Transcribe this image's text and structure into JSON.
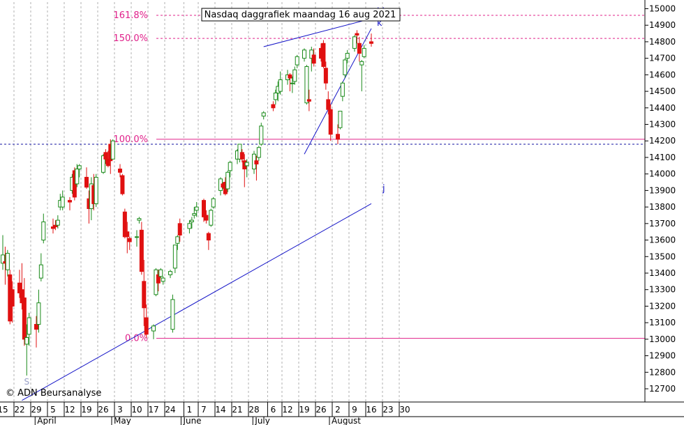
{
  "title": "Nasdaq daggrafiek maandag 16 aug 2021",
  "copyright": "© ADN Beursanalyse",
  "colors": {
    "up": "#1a8a1a",
    "down": "#e01010",
    "fib": "#e0208a",
    "trend": "#1515c8",
    "grid": "#b0b0b0"
  },
  "chart_data": {
    "type": "candlestick",
    "title": "Nasdaq daggrafiek maandag 16 aug 2021",
    "y_axis": {
      "position": "right",
      "ylim": [
        12620,
        15040
      ],
      "ticks": [
        12700,
        12800,
        12900,
        13000,
        13100,
        13200,
        13300,
        13400,
        13500,
        13600,
        13700,
        13800,
        13900,
        14000,
        14100,
        14200,
        14300,
        14400,
        14500,
        14600,
        14700,
        14800,
        14900,
        15000
      ]
    },
    "x_axis": {
      "day_ticks": [
        "15",
        "22",
        "29",
        "5",
        "12",
        "19",
        "26",
        "3",
        "10",
        "17",
        "24",
        "1",
        "7",
        "14",
        "21",
        "28",
        "6",
        "12",
        "19",
        "26",
        "2",
        "9",
        "16",
        "23",
        "30"
      ],
      "month_labels": [
        "April",
        "May",
        "June",
        "July",
        "August"
      ],
      "grid": "vertical dashed"
    },
    "fib_levels": [
      {
        "label": "161.8%",
        "value": 14960
      },
      {
        "label": "150.0%",
        "value": 14820
      },
      {
        "label": "100.0%",
        "value": 14210
      },
      {
        "label": "0.0%",
        "value": 13005
      }
    ],
    "horizontal_lines": [
      {
        "value": 14180,
        "style": "dashed"
      }
    ],
    "trendlines": [
      {
        "label": "j",
        "from": {
          "date": "2021-03-23",
          "value": 12630
        },
        "to": {
          "date": "2021-08-16",
          "value": 13820
        }
      },
      {
        "label": "k",
        "from": {
          "date": "2021-07-19",
          "value": 14120
        },
        "to": {
          "date": "2021-08-16",
          "value": 14880
        }
      },
      {
        "label": "k'",
        "from": {
          "date": "2021-07-02",
          "value": 14770
        },
        "to": {
          "date": "2021-08-16",
          "value": 14940
        }
      }
    ],
    "annotations": [
      {
        "text": "S",
        "date": "2021-03-25",
        "value": 12750
      }
    ],
    "candles": [
      {
        "date": "2021-03-15",
        "open": 13460,
        "high": 13630,
        "low": 13420,
        "close": 13510
      },
      {
        "date": "2021-03-16",
        "open": 13470,
        "high": 13560,
        "low": 13330,
        "close": 13460
      },
      {
        "date": "2021-03-17",
        "open": 13420,
        "high": 13540,
        "low": 13380,
        "close": 13520
      },
      {
        "date": "2021-03-18",
        "open": 13390,
        "high": 13420,
        "low": 13090,
        "close": 13110
      },
      {
        "date": "2021-03-19",
        "open": 13300,
        "high": 13350,
        "low": 13100,
        "close": 13200
      },
      {
        "date": "2021-03-22",
        "open": 13340,
        "high": 13420,
        "low": 13250,
        "close": 13280
      },
      {
        "date": "2021-03-23",
        "open": 13300,
        "high": 13460,
        "low": 13180,
        "close": 13220
      },
      {
        "date": "2021-03-24",
        "open": 13250,
        "high": 13370,
        "low": 12960,
        "close": 13000
      },
      {
        "date": "2021-03-25",
        "open": 12970,
        "high": 13090,
        "low": 12780,
        "close": 13010
      },
      {
        "date": "2021-03-26",
        "open": 13030,
        "high": 13160,
        "low": 12960,
        "close": 13130
      },
      {
        "date": "2021-03-29",
        "open": 13090,
        "high": 13140,
        "low": 12950,
        "close": 13060
      },
      {
        "date": "2021-03-30",
        "open": 13090,
        "high": 13300,
        "low": 13040,
        "close": 13220
      },
      {
        "date": "2021-03-31",
        "open": 13370,
        "high": 13520,
        "low": 13350,
        "close": 13450
      },
      {
        "date": "2021-04-01",
        "open": 13600,
        "high": 13760,
        "low": 13580,
        "close": 13710
      },
      {
        "date": "2021-04-05",
        "open": 13680,
        "high": 13730,
        "low": 13640,
        "close": 13670
      },
      {
        "date": "2021-04-06",
        "open": 13690,
        "high": 13720,
        "low": 13660,
        "close": 13680
      },
      {
        "date": "2021-04-07",
        "open": 13690,
        "high": 13750,
        "low": 13670,
        "close": 13720
      },
      {
        "date": "2021-04-08",
        "open": 13800,
        "high": 13880,
        "low": 13780,
        "close": 13840
      },
      {
        "date": "2021-04-09",
        "open": 13800,
        "high": 13900,
        "low": 13780,
        "close": 13860
      },
      {
        "date": "2021-04-12",
        "open": 13840,
        "high": 13860,
        "low": 13780,
        "close": 13830
      },
      {
        "date": "2021-04-13",
        "open": 13900,
        "high": 14000,
        "low": 13880,
        "close": 13980
      },
      {
        "date": "2021-04-14",
        "open": 14020,
        "high": 14040,
        "low": 13840,
        "close": 13860
      },
      {
        "date": "2021-04-15",
        "open": 13940,
        "high": 14060,
        "low": 13920,
        "close": 14030
      },
      {
        "date": "2021-04-16",
        "open": 14030,
        "high": 14060,
        "low": 13980,
        "close": 14050
      },
      {
        "date": "2021-04-19",
        "open": 13980,
        "high": 14040,
        "low": 13910,
        "close": 13920
      },
      {
        "date": "2021-04-20",
        "open": 13850,
        "high": 13900,
        "low": 13700,
        "close": 13790
      },
      {
        "date": "2021-04-21",
        "open": 13790,
        "high": 13980,
        "low": 13720,
        "close": 13940
      },
      {
        "date": "2021-04-22",
        "open": 13930,
        "high": 14000,
        "low": 13780,
        "close": 13820
      },
      {
        "date": "2021-04-23",
        "open": 13820,
        "high": 14000,
        "low": 13800,
        "close": 13980
      },
      {
        "date": "2021-04-26",
        "open": 14010,
        "high": 14120,
        "low": 14000,
        "close": 14110
      },
      {
        "date": "2021-04-27",
        "open": 14130,
        "high": 14150,
        "low": 14060,
        "close": 14090
      },
      {
        "date": "2021-04-28",
        "open": 14090,
        "high": 14140,
        "low": 14040,
        "close": 14050
      },
      {
        "date": "2021-04-29",
        "open": 14180,
        "high": 14210,
        "low": 14000,
        "close": 14080
      },
      {
        "date": "2021-04-30",
        "open": 14090,
        "high": 14210,
        "low": 14090,
        "close": 14200
      },
      {
        "date": "2021-05-03",
        "open": 14030,
        "high": 14060,
        "low": 13980,
        "close": 14010
      },
      {
        "date": "2021-05-04",
        "open": 13990,
        "high": 14000,
        "low": 13870,
        "close": 13880
      },
      {
        "date": "2021-05-05",
        "open": 13770,
        "high": 13790,
        "low": 13610,
        "close": 13620
      },
      {
        "date": "2021-05-06",
        "open": 13650,
        "high": 13710,
        "low": 13520,
        "close": 13620
      },
      {
        "date": "2021-05-07",
        "open": 13610,
        "high": 13620,
        "low": 13540,
        "close": 13590
      },
      {
        "date": "2021-05-10",
        "open": 13620,
        "high": 13660,
        "low": 13560,
        "close": 13620
      },
      {
        "date": "2021-05-11",
        "open": 13720,
        "high": 13740,
        "low": 13700,
        "close": 13730
      },
      {
        "date": "2021-05-12",
        "open": 13660,
        "high": 13710,
        "low": 13390,
        "close": 13410
      },
      {
        "date": "2021-05-13",
        "open": 13350,
        "high": 13480,
        "low": 13080,
        "close": 13190
      },
      {
        "date": "2021-05-14",
        "open": 13130,
        "high": 13210,
        "low": 13010,
        "close": 13030
      },
      {
        "date": "2021-05-17",
        "open": 13050,
        "high": 13090,
        "low": 13000,
        "close": 13080
      },
      {
        "date": "2021-05-18",
        "open": 13270,
        "high": 13430,
        "low": 13260,
        "close": 13420
      },
      {
        "date": "2021-05-19",
        "open": 13390,
        "high": 13420,
        "low": 13290,
        "close": 13340
      },
      {
        "date": "2021-05-20",
        "open": 13380,
        "high": 13430,
        "low": 13370,
        "close": 13420
      },
      {
        "date": "2021-05-21",
        "open": 13350,
        "high": 13380,
        "low": 13330,
        "close": 13370
      },
      {
        "date": "2021-05-24",
        "open": 13390,
        "high": 13420,
        "low": 13370,
        "close": 13410
      },
      {
        "date": "2021-05-25",
        "open": 13060,
        "high": 13270,
        "low": 13040,
        "close": 13240
      },
      {
        "date": "2021-05-26",
        "open": 13430,
        "high": 13560,
        "low": 13400,
        "close": 13570
      },
      {
        "date": "2021-05-27",
        "open": 13580,
        "high": 13630,
        "low": 13540,
        "close": 13620
      },
      {
        "date": "2021-05-28",
        "open": 13700,
        "high": 13730,
        "low": 13590,
        "close": 13630
      },
      {
        "date": "2021-06-01",
        "open": 13670,
        "high": 13720,
        "low": 13640,
        "close": 13700
      },
      {
        "date": "2021-06-02",
        "open": 13710,
        "high": 13740,
        "low": 13670,
        "close": 13720
      },
      {
        "date": "2021-06-03",
        "open": 13750,
        "high": 13800,
        "low": 13730,
        "close": 13760
      },
      {
        "date": "2021-06-04",
        "open": 13780,
        "high": 13830,
        "low": 13740,
        "close": 13800
      },
      {
        "date": "2021-06-07",
        "open": 13840,
        "high": 13850,
        "low": 13710,
        "close": 13740
      },
      {
        "date": "2021-06-08",
        "open": 13750,
        "high": 13780,
        "low": 13700,
        "close": 13720
      },
      {
        "date": "2021-06-09",
        "open": 13640,
        "high": 13650,
        "low": 13540,
        "close": 13600
      },
      {
        "date": "2021-06-10",
        "open": 13690,
        "high": 13790,
        "low": 13680,
        "close": 13780
      },
      {
        "date": "2021-06-11",
        "open": 13800,
        "high": 13860,
        "low": 13790,
        "close": 13850
      },
      {
        "date": "2021-06-14",
        "open": 13900,
        "high": 13980,
        "low": 13870,
        "close": 13970
      },
      {
        "date": "2021-06-15",
        "open": 13940,
        "high": 13950,
        "low": 13910,
        "close": 13920
      },
      {
        "date": "2021-06-16",
        "open": 13950,
        "high": 13980,
        "low": 13870,
        "close": 13880
      },
      {
        "date": "2021-06-17",
        "open": 13910,
        "high": 14020,
        "low": 13890,
        "close": 14010
      },
      {
        "date": "2021-06-18",
        "open": 14020,
        "high": 14080,
        "low": 13980,
        "close": 14070
      },
      {
        "date": "2021-06-21",
        "open": 14090,
        "high": 14150,
        "low": 14060,
        "close": 14140
      },
      {
        "date": "2021-06-22",
        "open": 14090,
        "high": 14180,
        "low": 14070,
        "close": 14180
      },
      {
        "date": "2021-06-23",
        "open": 14130,
        "high": 14150,
        "low": 14070,
        "close": 14090
      },
      {
        "date": "2021-06-24",
        "open": 14080,
        "high": 14120,
        "low": 13920,
        "close": 14030
      },
      {
        "date": "2021-06-25",
        "open": 14050,
        "high": 14090,
        "low": 13980,
        "close": 14070
      },
      {
        "date": "2021-06-28",
        "open": 14030,
        "high": 14140,
        "low": 14000,
        "close": 14120
      },
      {
        "date": "2021-06-29",
        "open": 14080,
        "high": 14110,
        "low": 13960,
        "close": 14060
      },
      {
        "date": "2021-06-30",
        "open": 14100,
        "high": 14170,
        "low": 14080,
        "close": 14160
      },
      {
        "date": "2021-07-01",
        "open": 14180,
        "high": 14310,
        "low": 14170,
        "close": 14290
      },
      {
        "date": "2021-07-02",
        "open": 14350,
        "high": 14380,
        "low": 14330,
        "close": 14370
      },
      {
        "date": "2021-07-06",
        "open": 14420,
        "high": 14440,
        "low": 14380,
        "close": 14400
      },
      {
        "date": "2021-07-07",
        "open": 14450,
        "high": 14510,
        "low": 14420,
        "close": 14490
      },
      {
        "date": "2021-07-08",
        "open": 14490,
        "high": 14560,
        "low": 14440,
        "close": 14530
      },
      {
        "date": "2021-07-09",
        "open": 14500,
        "high": 14620,
        "low": 14480,
        "close": 14570
      },
      {
        "date": "2021-07-12",
        "open": 14570,
        "high": 14630,
        "low": 14540,
        "close": 14600
      },
      {
        "date": "2021-07-13",
        "open": 14600,
        "high": 14610,
        "low": 14500,
        "close": 14580
      },
      {
        "date": "2021-07-14",
        "open": 14550,
        "high": 14590,
        "low": 14490,
        "close": 14550
      },
      {
        "date": "2021-07-15",
        "open": 14560,
        "high": 14650,
        "low": 14540,
        "close": 14630
      },
      {
        "date": "2021-07-16",
        "open": 14660,
        "high": 14720,
        "low": 14640,
        "close": 14710
      },
      {
        "date": "2021-07-19",
        "open": 14700,
        "high": 14760,
        "low": 14680,
        "close": 14750
      },
      {
        "date": "2021-07-20",
        "open": 14430,
        "high": 14660,
        "low": 14420,
        "close": 14650
      },
      {
        "date": "2021-07-21",
        "open": 14450,
        "high": 14510,
        "low": 14380,
        "close": 14440
      },
      {
        "date": "2021-07-22",
        "open": 14700,
        "high": 14770,
        "low": 14620,
        "close": 14750
      },
      {
        "date": "2021-07-23",
        "open": 14720,
        "high": 14760,
        "low": 14650,
        "close": 14670
      },
      {
        "date": "2021-07-26",
        "open": 14760,
        "high": 14790,
        "low": 14680,
        "close": 14700
      },
      {
        "date": "2021-07-27",
        "open": 14790,
        "high": 14810,
        "low": 14640,
        "close": 14650
      },
      {
        "date": "2021-07-28",
        "open": 14640,
        "high": 14680,
        "low": 14510,
        "close": 14550
      },
      {
        "date": "2021-07-29",
        "open": 14450,
        "high": 14500,
        "low": 14360,
        "close": 14390
      },
      {
        "date": "2021-07-30",
        "open": 14390,
        "high": 14420,
        "low": 14200,
        "close": 14240
      },
      {
        "date": "2021-08-02",
        "open": 14240,
        "high": 14300,
        "low": 14180,
        "close": 14210
      },
      {
        "date": "2021-08-03",
        "open": 14280,
        "high": 14380,
        "low": 14270,
        "close": 14380
      },
      {
        "date": "2021-08-04",
        "open": 14470,
        "high": 14560,
        "low": 14440,
        "close": 14550
      },
      {
        "date": "2021-08-05",
        "open": 14600,
        "high": 14700,
        "low": 14580,
        "close": 14690
      },
      {
        "date": "2021-08-06",
        "open": 14700,
        "high": 14750,
        "low": 14670,
        "close": 14730
      },
      {
        "date": "2021-08-09",
        "open": 14760,
        "high": 14840,
        "low": 14740,
        "close": 14830
      },
      {
        "date": "2021-08-10",
        "open": 14850,
        "high": 14870,
        "low": 14790,
        "close": 14840
      },
      {
        "date": "2021-08-11",
        "open": 14790,
        "high": 14830,
        "low": 14680,
        "close": 14730
      },
      {
        "date": "2021-08-12",
        "open": 14660,
        "high": 14690,
        "low": 14500,
        "close": 14680
      },
      {
        "date": "2021-08-13",
        "open": 14710,
        "high": 14780,
        "low": 14700,
        "close": 14760
      },
      {
        "date": "2021-08-16",
        "open": 14800,
        "high": 14850,
        "low": 14770,
        "close": 14790
      }
    ]
  }
}
